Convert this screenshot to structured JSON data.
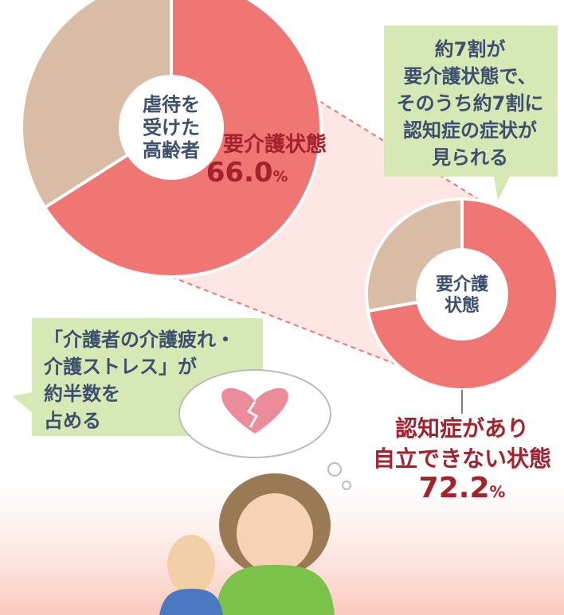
{
  "chart_data": [
    {
      "type": "pie",
      "center_label": [
        "虐待を",
        "受けた",
        "高齢者"
      ],
      "label": [
        "要介護状態"
      ],
      "value": 66.0,
      "value_label": "66.0",
      "unit": "%",
      "color": "#ef7672",
      "rest_color": "#d9bca5"
    },
    {
      "type": "pie",
      "center_label": [
        "要介護",
        "状態"
      ],
      "label": [
        "認知症があり",
        "自立できない状態"
      ],
      "value": 72.2,
      "value_label": "72.2",
      "unit": "%",
      "color": "#ef7672",
      "rest_color": "#d9bca5"
    }
  ],
  "annotations": [
    [
      "約7割が",
      "要介護状態で、",
      "そのうち約7割に",
      "認知症の症状が",
      "見られる"
    ],
    [
      "「介護者の介護疲れ・",
      "介護ストレス」が",
      "約半数を",
      "占める"
    ]
  ]
}
